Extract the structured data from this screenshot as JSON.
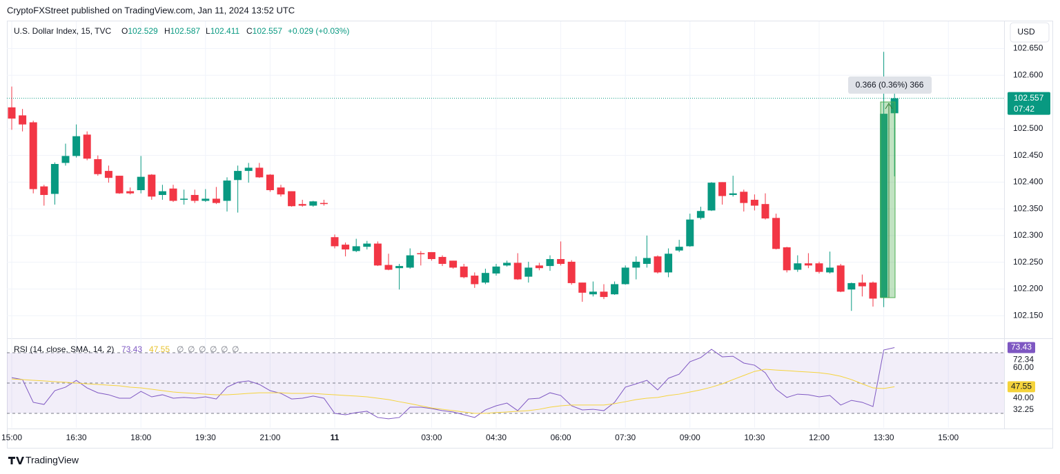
{
  "header": {
    "published": "CryptoFXStreet published on TradingView.com, Jan 11, 2024 13:52 UTC"
  },
  "chart_data": [
    {
      "type": "candlestick",
      "symbol_label": "U.S. Dollar Index, 15, TVC",
      "ohlc_prefixes": [
        "O",
        "H",
        "L",
        "C"
      ],
      "change": "+0.029 (+0.03%)",
      "currency": "USD",
      "countdown": "07:42",
      "annotation": "0.366 (0.36%) 366",
      "up_color": "#089981",
      "down_color": "#f23645",
      "categories": [
        "15:00",
        null,
        null,
        null,
        null,
        null,
        "16:30",
        null,
        null,
        null,
        null,
        null,
        "18:00",
        null,
        null,
        null,
        null,
        null,
        "19:30",
        null,
        null,
        null,
        null,
        null,
        "21:00",
        null,
        null,
        null,
        null,
        null,
        "11",
        null,
        null,
        null,
        null,
        null,
        null,
        null,
        null,
        "03:00",
        null,
        null,
        null,
        null,
        null,
        "04:30",
        null,
        null,
        null,
        null,
        null,
        "06:00",
        null,
        null,
        null,
        null,
        null,
        "07:30",
        null,
        null,
        null,
        null,
        null,
        "09:00",
        null,
        null,
        null,
        null,
        null,
        "10:30",
        null,
        null,
        null,
        null,
        null,
        "12:00",
        null,
        null,
        null,
        null,
        null,
        "13:30",
        null,
        null,
        null,
        null,
        null,
        "15:00"
      ],
      "open": [
        102.54,
        102.525,
        102.512,
        102.392,
        102.378,
        102.436,
        102.449,
        102.489,
        102.443,
        102.421,
        102.412,
        102.383,
        102.385,
        102.414,
        102.376,
        102.388,
        102.367,
        102.376,
        102.365,
        102.369,
        102.365,
        102.404,
        102.421,
        102.427,
        102.414,
        102.39,
        102.383,
        102.359,
        102.356,
        102.361,
        102.297,
        102.283,
        102.271,
        102.279,
        102.285,
        102.245,
        102.239,
        102.24,
        102.267,
        102.269,
        102.26,
        102.253,
        102.242,
        102.225,
        102.212,
        102.229,
        102.244,
        102.249,
        102.223,
        102.244,
        102.243,
        102.256,
        102.251,
        102.212,
        102.19,
        102.195,
        102.19,
        102.209,
        102.24,
        102.247,
        102.261,
        102.231,
        102.272,
        102.28,
        102.333,
        102.347,
        102.4,
        102.376,
        102.382,
        102.367,
        102.359,
        102.333,
        102.278,
        102.236,
        102.248,
        102.248,
        102.231,
        102.244,
        102.199,
        102.212,
        102.212,
        102.184,
        102.529,
        null,
        null,
        null,
        null,
        null
      ],
      "high": [
        102.579,
        102.537,
        102.515,
        102.395,
        102.437,
        102.472,
        102.508,
        102.495,
        102.45,
        102.431,
        102.412,
        102.39,
        102.449,
        102.415,
        102.395,
        102.395,
        102.386,
        102.386,
        102.387,
        102.391,
        102.409,
        102.431,
        102.436,
        102.436,
        102.415,
        102.395,
        102.383,
        102.367,
        102.365,
        102.367,
        102.302,
        102.287,
        102.294,
        102.29,
        102.289,
        102.266,
        102.247,
        102.276,
        102.271,
        102.269,
        102.263,
        102.253,
        102.247,
        102.231,
        102.238,
        102.247,
        102.253,
        102.267,
        102.251,
        102.249,
        102.263,
        102.289,
        102.254,
        102.212,
        102.214,
        102.209,
        102.214,
        102.244,
        102.261,
        102.3,
        102.263,
        102.276,
        102.292,
        102.341,
        102.354,
        102.4,
        102.4,
        102.412,
        102.386,
        102.377,
        102.379,
        102.341,
        102.279,
        102.263,
        102.267,
        102.251,
        102.27,
        102.247,
        102.212,
        102.227,
        102.214,
        102.644,
        102.587,
        null,
        null,
        null,
        null,
        null
      ],
      "low": [
        102.498,
        102.495,
        102.379,
        102.356,
        102.358,
        102.431,
        102.446,
        102.441,
        102.412,
        102.399,
        102.378,
        102.377,
        102.379,
        102.367,
        102.367,
        102.363,
        102.358,
        102.361,
        102.363,
        102.359,
        102.345,
        102.343,
        102.399,
        102.408,
        102.382,
        102.373,
        102.354,
        102.354,
        102.354,
        102.356,
        102.276,
        102.261,
        102.269,
        102.274,
        102.243,
        102.235,
        102.199,
        102.238,
        102.244,
        102.253,
        102.243,
        102.238,
        102.22,
        102.202,
        102.209,
        102.225,
        102.242,
        102.217,
        102.212,
        102.235,
        102.234,
        102.244,
        102.208,
        102.176,
        102.186,
        102.181,
        102.189,
        102.208,
        102.218,
        102.24,
        102.229,
        102.222,
        102.269,
        102.279,
        102.33,
        102.346,
        102.358,
        102.373,
        102.345,
        102.347,
        102.33,
        102.274,
        102.231,
        102.232,
        102.239,
        102.229,
        102.229,
        102.194,
        102.159,
        102.186,
        102.167,
        102.166,
        102.411,
        null,
        null,
        null,
        null,
        null
      ],
      "close": [
        102.519,
        102.508,
        102.387,
        102.376,
        102.434,
        102.449,
        102.486,
        102.444,
        102.415,
        102.408,
        102.379,
        102.379,
        102.41,
        102.373,
        102.383,
        102.365,
        102.369,
        102.365,
        102.369,
        102.361,
        102.403,
        102.421,
        102.427,
        102.409,
        102.385,
        102.377,
        102.355,
        102.356,
        102.364,
        102.359,
        102.28,
        102.274,
        102.28,
        102.285,
        102.244,
        102.236,
        102.243,
        102.263,
        102.265,
        102.256,
        102.247,
        102.24,
        102.222,
        102.209,
        102.23,
        102.242,
        102.249,
        102.218,
        102.24,
        102.239,
        102.256,
        102.247,
        102.211,
        102.193,
        102.195,
        102.185,
        102.209,
        102.24,
        102.251,
        102.258,
        102.231,
        102.266,
        102.279,
        102.33,
        102.346,
        102.399,
        102.374,
        102.379,
        102.361,
        102.356,
        102.332,
        102.275,
        102.235,
        102.248,
        102.244,
        102.232,
        102.24,
        102.195,
        102.211,
        102.205,
        102.182,
        102.528,
        102.557,
        null,
        null,
        null,
        null,
        null
      ],
      "ylim": [
        102.109,
        102.701
      ],
      "yticks": [
        {
          "value": 102.65,
          "label": "102.650"
        },
        {
          "value": 102.6,
          "label": "102.600"
        },
        {
          "value": 102.5,
          "label": "102.500"
        },
        {
          "value": 102.45,
          "label": "102.450"
        },
        {
          "value": 102.4,
          "label": "102.400"
        },
        {
          "value": 102.35,
          "label": "102.350"
        },
        {
          "value": 102.3,
          "label": "102.300"
        },
        {
          "value": 102.25,
          "label": "102.250"
        },
        {
          "value": 102.2,
          "label": "102.200"
        },
        {
          "value": 102.15,
          "label": "102.150"
        }
      ],
      "grid": true
    },
    {
      "type": "line",
      "label": "RSI (14, close, SMA, 14, 2)",
      "placeholders": [
        "∅",
        "∅",
        "∅",
        "∅",
        "∅",
        "∅"
      ],
      "series": [
        {
          "color": "#7e57c2",
          "values": [
            53.6,
            52.3,
            37.3,
            35.9,
            45.0,
            47.3,
            51.8,
            46.8,
            43.6,
            42.3,
            40.0,
            40.0,
            44.5,
            40.9,
            42.3,
            40.0,
            40.5,
            40.0,
            40.9,
            39.5,
            47.3,
            50.5,
            51.4,
            49.1,
            45.0,
            43.2,
            39.5,
            40.0,
            41.4,
            40.0,
            30.0,
            29.1,
            30.5,
            31.4,
            27.3,
            26.4,
            27.3,
            34.1,
            34.1,
            33.2,
            31.8,
            30.9,
            29.1,
            27.3,
            32.3,
            35.0,
            36.8,
            31.8,
            39.5,
            40.0,
            43.6,
            41.8,
            35.0,
            32.3,
            32.7,
            31.8,
            37.3,
            47.3,
            49.5,
            51.8,
            45.5,
            53.2,
            55.9,
            64.1,
            66.8,
            72.3,
            67.3,
            67.7,
            63.2,
            61.8,
            56.8,
            45.9,
            40.5,
            42.7,
            42.3,
            40.9,
            41.8,
            35.5,
            38.6,
            37.3,
            34.5,
            71.8,
            73.43,
            null,
            null,
            null,
            null,
            null
          ]
        },
        {
          "color": "#f5d33b",
          "values": [
            52.7,
            52.3,
            51.8,
            51.4,
            50.9,
            50.5,
            50.0,
            49.5,
            49.1,
            48.6,
            48.2,
            47.3,
            46.8,
            45.9,
            45.0,
            44.1,
            43.6,
            43.2,
            42.7,
            42.3,
            42.3,
            42.7,
            43.2,
            43.6,
            43.6,
            43.6,
            43.2,
            43.2,
            43.2,
            42.7,
            42.3,
            41.8,
            41.4,
            40.9,
            40.0,
            39.1,
            37.7,
            36.4,
            35.0,
            33.6,
            32.7,
            31.8,
            30.9,
            30.0,
            30.0,
            30.5,
            30.9,
            31.4,
            31.8,
            32.7,
            34.1,
            35.0,
            35.5,
            35.5,
            35.5,
            35.5,
            36.4,
            37.7,
            39.1,
            40.0,
            40.5,
            41.8,
            42.7,
            44.1,
            45.5,
            47.3,
            49.5,
            52.3,
            55.0,
            57.7,
            59.1,
            58.6,
            58.2,
            57.7,
            57.3,
            56.8,
            55.9,
            54.5,
            52.3,
            49.5,
            46.8,
            46.4,
            47.55,
            null,
            null,
            null,
            null,
            null
          ]
        }
      ],
      "ylim": [
        20,
        79.1
      ],
      "yticks": [
        72.34,
        {
          "value": 60,
          "label": "60.00"
        },
        {
          "value": 40,
          "label": "40.00"
        },
        32.25
      ],
      "bands": [
        70,
        50,
        30
      ],
      "band_fill": "#7e57c2"
    }
  ],
  "footer": {
    "brand": "TradingView"
  }
}
